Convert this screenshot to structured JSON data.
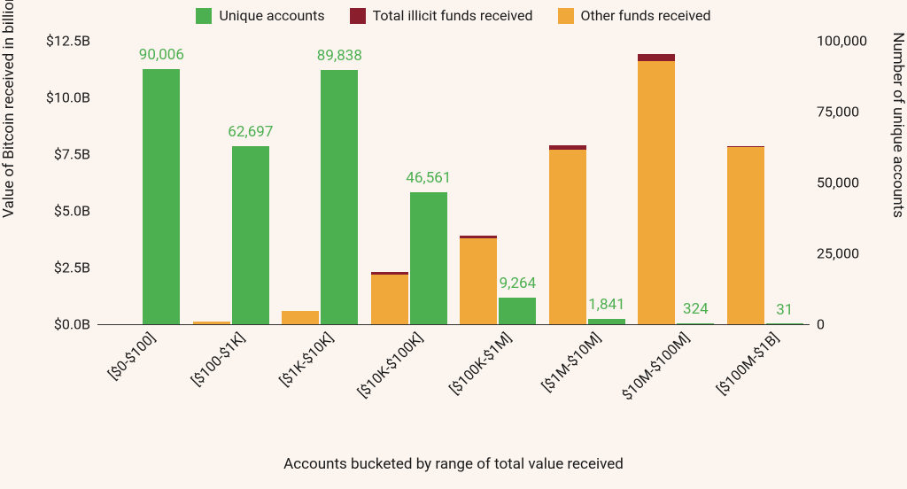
{
  "chart": {
    "type": "bar",
    "background_color": "#fbf4ef",
    "legend": {
      "items": [
        {
          "label": "Unique accounts",
          "color": "#4caf50"
        },
        {
          "label": "Total illicit funds received",
          "color": "#8b1e2d"
        },
        {
          "label": "Other funds received",
          "color": "#f0a83a"
        }
      ],
      "fontsize": 16
    },
    "y_left": {
      "label": "Value of Bitcoin received in billions of USD",
      "min": 0,
      "max": 12.5,
      "ticks": [
        {
          "v": 0.0,
          "label": "$0.0B"
        },
        {
          "v": 2.5,
          "label": "$2.5B"
        },
        {
          "v": 5.0,
          "label": "$5.0B"
        },
        {
          "v": 7.5,
          "label": "$7.5B"
        },
        {
          "v": 10.0,
          "label": "$10.0B"
        },
        {
          "v": 12.5,
          "label": "$12.5B"
        }
      ],
      "label_fontsize": 17,
      "tick_fontsize": 16
    },
    "y_right": {
      "label": "Number of unique accounts",
      "min": 0,
      "max": 100000,
      "ticks": [
        {
          "v": 0,
          "label": "0"
        },
        {
          "v": 25000,
          "label": "25,000"
        },
        {
          "v": 50000,
          "label": "50,000"
        },
        {
          "v": 75000,
          "label": "75,000"
        },
        {
          "v": 100000,
          "label": "100,000"
        }
      ],
      "label_fontsize": 17,
      "tick_fontsize": 16
    },
    "x": {
      "label": "Accounts bucketed by range of total value received",
      "categories": [
        "[$0-$100]",
        "[$100-$1K]",
        "[$1K-$10K]",
        "[$10K-$100K]",
        "[$100K-$1M]",
        "[$1M-$10M]",
        "$10M-$100M]",
        "[$100M-$1B]"
      ],
      "tick_rotation": -45,
      "label_fontsize": 17,
      "tick_fontsize": 16
    },
    "bar_widths": {
      "green": 0.42,
      "stacked": 0.42,
      "gap": 0.02
    },
    "series_unique_accounts": {
      "color": "#4caf50",
      "axis": "right",
      "values": [
        90006,
        62697,
        89838,
        46561,
        9264,
        1841,
        324,
        31
      ],
      "labels": [
        "90,006",
        "62,697",
        "89,838",
        "46,561",
        "9,264",
        "1,841",
        "324",
        "31"
      ],
      "label_color": "#4caf50",
      "label_fontsize": 17
    },
    "series_other_funds": {
      "color": "#f0a83a",
      "axis": "left",
      "values": [
        0.0,
        0.1,
        0.6,
        2.2,
        3.8,
        7.7,
        11.6,
        7.8
      ]
    },
    "series_illicit_funds": {
      "color": "#8b1e2d",
      "axis": "left",
      "values": [
        0.0,
        0.0,
        0.0,
        0.1,
        0.1,
        0.2,
        0.3,
        0.05
      ]
    }
  }
}
